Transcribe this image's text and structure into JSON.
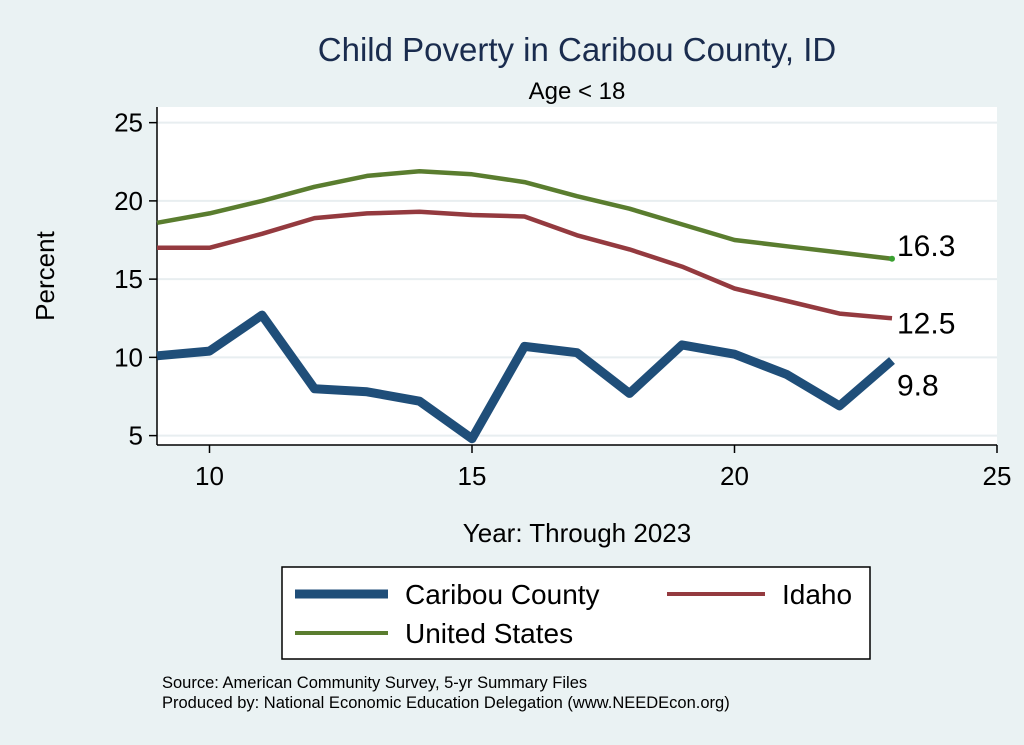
{
  "chart_data": {
    "type": "line",
    "title": "Child Poverty in Caribou County, ID",
    "subtitle": "Age < 18",
    "xlabel": "Year: Through 2023",
    "ylabel": "Percent",
    "xlim": [
      9,
      25
    ],
    "ylim": [
      4.4,
      26
    ],
    "xticks": [
      10,
      15,
      20,
      25
    ],
    "yticks": [
      5,
      10,
      15,
      20,
      25
    ],
    "grid": true,
    "legend_position": "bottom",
    "x": [
      9,
      10,
      11,
      12,
      13,
      14,
      15,
      16,
      17,
      18,
      19,
      20,
      21,
      22,
      23
    ],
    "series": [
      {
        "name": "Caribou County",
        "color": "#1f4e79",
        "width": "thick",
        "values": [
          10.1,
          10.4,
          12.7,
          8.0,
          7.8,
          7.2,
          4.8,
          10.7,
          10.3,
          7.7,
          10.8,
          10.2,
          8.9,
          6.9,
          9.8
        ],
        "end_label": "9.8"
      },
      {
        "name": "Idaho",
        "color": "#943a3f",
        "width": "medium",
        "values": [
          17.0,
          17.0,
          17.9,
          18.9,
          19.2,
          19.3,
          19.1,
          19.0,
          17.8,
          16.9,
          15.8,
          14.4,
          13.6,
          12.8,
          12.5
        ],
        "end_label": "12.5"
      },
      {
        "name": "United States",
        "color": "#5a7d2f",
        "width": "medium",
        "values": [
          18.6,
          19.2,
          20.0,
          20.9,
          21.6,
          21.9,
          21.7,
          21.2,
          20.3,
          19.5,
          18.5,
          17.5,
          17.1,
          16.7,
          16.3
        ],
        "end_label": "16.3"
      }
    ]
  },
  "legend": {
    "items": [
      "Caribou County",
      "Idaho",
      "United States"
    ]
  },
  "footer": {
    "source": "Source: American Community Survey, 5-yr Summary Files",
    "produced": "Produced by: National Economic Education Delegation (www.NEEDEcon.org)"
  }
}
